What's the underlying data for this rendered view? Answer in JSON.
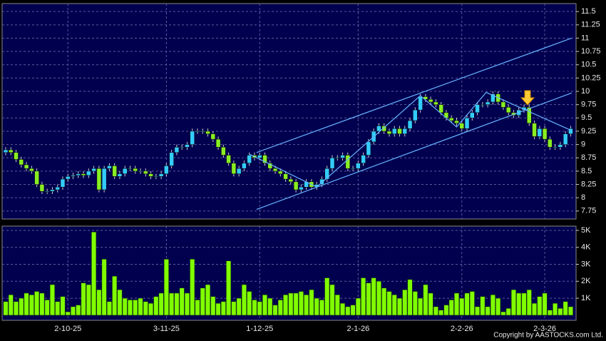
{
  "chart_data": [
    {
      "type": "candlestick",
      "open": [
        8.85,
        8.9,
        8.85,
        8.72,
        8.62,
        8.55,
        8.5,
        8.25,
        8.12,
        8.12,
        8.15,
        8.2,
        8.35,
        8.4,
        8.42,
        8.45,
        8.42,
        8.5,
        8.55,
        8.15,
        8.55,
        8.6,
        8.4,
        8.45,
        8.55,
        8.55,
        8.5,
        8.5,
        8.45,
        8.4,
        8.4,
        8.45,
        8.6,
        8.85,
        8.95,
        8.95,
        9.0,
        9.25,
        9.25,
        9.25,
        9.2,
        9.1,
        8.95,
        8.8,
        8.65,
        8.45,
        8.55,
        8.65,
        8.8,
        8.75,
        8.8,
        8.65,
        8.55,
        8.5,
        8.45,
        8.35,
        8.3,
        8.15,
        8.2,
        8.3,
        8.2,
        8.25,
        8.35,
        8.55,
        8.75,
        8.75,
        8.8,
        8.55,
        8.55,
        8.65,
        8.8,
        9.05,
        9.25,
        9.35,
        9.25,
        9.2,
        9.3,
        9.2,
        9.3,
        9.45,
        9.65,
        9.9,
        9.85,
        9.8,
        9.75,
        9.6,
        9.5,
        9.45,
        9.4,
        9.3,
        9.5,
        9.6,
        9.75,
        9.75,
        9.8,
        9.95,
        9.8,
        9.7,
        9.6,
        9.55,
        9.65,
        9.7,
        9.4,
        9.15,
        9.3,
        9.1,
        8.95,
        8.95,
        9.0,
        9.2
      ],
      "high": [
        8.95,
        8.95,
        8.9,
        8.77,
        8.67,
        8.6,
        8.55,
        8.3,
        8.17,
        8.2,
        8.25,
        8.4,
        8.45,
        8.47,
        8.5,
        8.5,
        8.55,
        8.6,
        8.6,
        8.6,
        8.65,
        8.65,
        8.5,
        8.6,
        8.6,
        8.6,
        8.55,
        8.55,
        8.5,
        8.45,
        8.5,
        8.65,
        8.9,
        9.0,
        9.0,
        9.05,
        9.3,
        9.3,
        9.3,
        9.3,
        9.25,
        9.15,
        9.0,
        8.85,
        8.7,
        8.6,
        8.7,
        8.85,
        8.85,
        8.85,
        8.85,
        8.7,
        8.6,
        8.55,
        8.5,
        8.4,
        8.35,
        8.25,
        8.35,
        8.35,
        8.3,
        8.4,
        8.6,
        8.8,
        8.8,
        8.85,
        8.85,
        8.6,
        8.7,
        8.85,
        9.1,
        9.3,
        9.4,
        9.4,
        9.3,
        9.35,
        9.35,
        9.35,
        9.5,
        9.7,
        9.95,
        9.95,
        9.9,
        9.85,
        9.8,
        9.65,
        9.55,
        9.5,
        9.45,
        9.55,
        9.65,
        9.8,
        9.8,
        9.85,
        10.0,
        10.0,
        9.85,
        9.75,
        9.65,
        9.7,
        9.75,
        9.75,
        9.45,
        9.35,
        9.35,
        9.15,
        9.0,
        9.05,
        9.25,
        9.35
      ],
      "low": [
        8.8,
        8.8,
        8.67,
        8.57,
        8.5,
        8.45,
        8.2,
        8.07,
        8.07,
        8.07,
        8.1,
        8.15,
        8.3,
        8.35,
        8.37,
        8.37,
        8.37,
        8.45,
        8.1,
        8.1,
        8.5,
        8.35,
        8.35,
        8.4,
        8.5,
        8.45,
        8.45,
        8.4,
        8.35,
        8.35,
        8.35,
        8.4,
        8.55,
        8.8,
        8.9,
        8.9,
        8.95,
        9.2,
        9.2,
        9.15,
        9.05,
        8.9,
        8.75,
        8.6,
        8.4,
        8.4,
        8.5,
        8.6,
        8.7,
        8.7,
        8.6,
        8.5,
        8.45,
        8.4,
        8.3,
        8.25,
        8.1,
        8.1,
        8.15,
        8.15,
        8.15,
        8.2,
        8.3,
        8.5,
        8.7,
        8.7,
        8.5,
        8.5,
        8.5,
        8.6,
        8.75,
        9.0,
        9.2,
        9.2,
        9.15,
        9.15,
        9.15,
        9.15,
        9.25,
        9.4,
        9.6,
        9.8,
        9.75,
        9.7,
        9.55,
        9.45,
        9.4,
        9.35,
        9.25,
        9.25,
        9.45,
        9.55,
        9.7,
        9.7,
        9.75,
        9.75,
        9.65,
        9.55,
        9.5,
        9.5,
        9.6,
        9.35,
        9.1,
        9.1,
        9.05,
        8.9,
        8.9,
        8.9,
        8.95,
        9.15
      ],
      "close": [
        8.9,
        8.85,
        8.72,
        8.62,
        8.55,
        8.5,
        8.25,
        8.12,
        8.12,
        8.15,
        8.2,
        8.35,
        8.4,
        8.42,
        8.45,
        8.42,
        8.5,
        8.55,
        8.15,
        8.55,
        8.6,
        8.4,
        8.45,
        8.55,
        8.55,
        8.5,
        8.5,
        8.45,
        8.4,
        8.4,
        8.45,
        8.6,
        8.85,
        8.95,
        8.95,
        9.0,
        9.25,
        9.25,
        9.25,
        9.2,
        9.1,
        8.95,
        8.8,
        8.65,
        8.45,
        8.55,
        8.65,
        8.8,
        8.75,
        8.8,
        8.65,
        8.55,
        8.5,
        8.45,
        8.35,
        8.3,
        8.15,
        8.2,
        8.3,
        8.2,
        8.25,
        8.35,
        8.55,
        8.75,
        8.75,
        8.8,
        8.55,
        8.55,
        8.65,
        8.8,
        9.05,
        9.25,
        9.35,
        9.25,
        9.2,
        9.3,
        9.2,
        9.3,
        9.45,
        9.65,
        9.9,
        9.85,
        9.8,
        9.75,
        9.6,
        9.5,
        9.45,
        9.4,
        9.3,
        9.5,
        9.6,
        9.75,
        9.75,
        9.8,
        9.95,
        9.8,
        9.7,
        9.6,
        9.55,
        9.65,
        9.7,
        9.4,
        9.15,
        9.3,
        9.1,
        8.95,
        8.95,
        9.0,
        9.2,
        9.3
      ],
      "up_color": "#33ccff",
      "down_color": "#88ee22",
      "ylim": [
        7.6,
        11.65
      ],
      "yticks": [
        7.75,
        8,
        8.25,
        8.5,
        8.75,
        9,
        9.25,
        9.5,
        9.75,
        10,
        10.25,
        10.5,
        10.75,
        11,
        11.25,
        11.5
      ],
      "grid": true,
      "trendlines": [
        {
          "color": "#66b3ff",
          "x": [
            48.4,
            109.2
          ],
          "y": [
            7.78,
            9.97
          ]
        },
        {
          "color": "#66b3ff",
          "x": [
            48.4,
            109.2
          ],
          "y": [
            8.85,
            11.0
          ]
        },
        {
          "color": "#66b3ff",
          "x": [
            47,
            60,
            80,
            87,
            92.7,
            109
          ],
          "y": [
            8.82,
            8.2,
            9.92,
            9.33,
            9.98,
            9.27
          ]
        }
      ]
    },
    {
      "type": "bar",
      "categories": [
        null,
        null,
        null,
        null,
        null,
        null,
        null,
        null,
        null,
        null,
        null,
        null,
        "2-10-25",
        null,
        null,
        null,
        null,
        null,
        null,
        null,
        null,
        null,
        null,
        null,
        null,
        null,
        null,
        null,
        null,
        null,
        null,
        "3-11-25",
        null,
        null,
        null,
        null,
        null,
        null,
        null,
        null,
        null,
        null,
        null,
        null,
        null,
        null,
        null,
        null,
        null,
        "1-12-25",
        null,
        null,
        null,
        null,
        null,
        null,
        null,
        null,
        null,
        null,
        null,
        null,
        null,
        null,
        null,
        null,
        null,
        null,
        "2-1-26",
        null,
        null,
        null,
        null,
        null,
        null,
        null,
        null,
        null,
        null,
        null,
        null,
        null,
        null,
        null,
        null,
        null,
        null,
        null,
        "2-2-26",
        null,
        null,
        null,
        null,
        null,
        null,
        null,
        null,
        null,
        null,
        null,
        null,
        null,
        null,
        null,
        "2-3-26",
        null,
        null,
        null,
        null,
        null
      ],
      "values": [
        800,
        1200,
        800,
        1000,
        1300,
        1200,
        1400,
        1300,
        900,
        1800,
        800,
        1100,
        200,
        500,
        600,
        1900,
        1800,
        4900,
        1500,
        3300,
        800,
        2300,
        1500,
        1000,
        900,
        900,
        1000,
        800,
        700,
        1100,
        1300,
        3300,
        1300,
        1300,
        1600,
        1300,
        3300,
        900,
        1600,
        1800,
        1100,
        700,
        800,
        3200,
        800,
        1000,
        1800,
        1400,
        900,
        800,
        1200,
        1000,
        600,
        900,
        1200,
        1300,
        1300,
        1400,
        1200,
        1500,
        1000,
        900,
        2200,
        1800,
        1200,
        700,
        500,
        600,
        1000,
        2200,
        1900,
        2200,
        2000,
        1600,
        1400,
        1200,
        1000,
        1500,
        2100,
        1400,
        1000,
        1800,
        1300,
        500,
        300,
        600,
        900,
        1300,
        1000,
        1300,
        1400,
        500,
        1100,
        500,
        1200,
        1000,
        200,
        400,
        1500,
        1300,
        1300,
        1500,
        700,
        1100,
        1300,
        300,
        700,
        400,
        800,
        500
      ],
      "color": "#80ff00",
      "ylim": [
        -300,
        5250
      ],
      "yticks": [
        {
          "value": 1000,
          "label": "1K"
        },
        {
          "value": 2000,
          "label": "2K"
        },
        {
          "value": 3000,
          "label": "3K"
        },
        {
          "value": 4000,
          "label": "4K"
        },
        {
          "value": 5000,
          "label": "5K"
        }
      ],
      "grid": true
    }
  ],
  "copyright": "Copyright by AASTOCKS.com Ltd."
}
